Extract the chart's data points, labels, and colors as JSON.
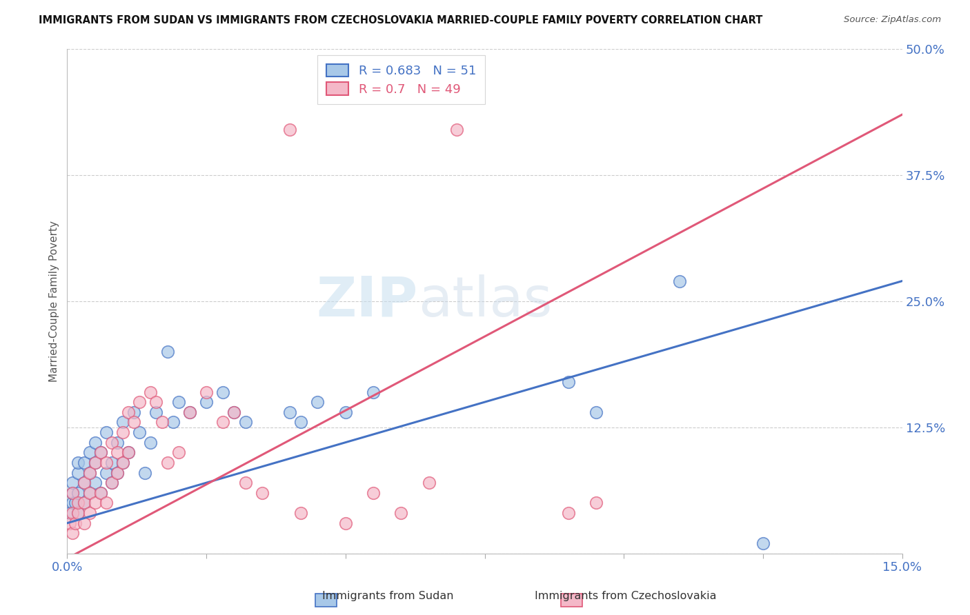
{
  "title": "IMMIGRANTS FROM SUDAN VS IMMIGRANTS FROM CZECHOSLOVAKIA MARRIED-COUPLE FAMILY POVERTY CORRELATION CHART",
  "source": "Source: ZipAtlas.com",
  "ylabel": "Married-Couple Family Poverty",
  "legend_label_blue": "Immigrants from Sudan",
  "legend_label_pink": "Immigrants from Czechoslovakia",
  "R_blue": 0.683,
  "N_blue": 51,
  "R_pink": 0.7,
  "N_pink": 49,
  "xlim": [
    0.0,
    0.15
  ],
  "ylim": [
    0.0,
    0.5
  ],
  "yticks": [
    0.0,
    0.125,
    0.25,
    0.375,
    0.5
  ],
  "ytick_labels": [
    "",
    "12.5%",
    "25.0%",
    "37.5%",
    "50.0%"
  ],
  "xticks": [
    0.0,
    0.025,
    0.05,
    0.075,
    0.1,
    0.125,
    0.15
  ],
  "xtick_labels": [
    "0.0%",
    "",
    "",
    "",
    "",
    "",
    "15.0%"
  ],
  "color_blue": "#a8c8e8",
  "color_pink": "#f4b8c8",
  "color_blue_line": "#4472c4",
  "color_pink_line": "#e05878",
  "color_blue_text": "#4472c4",
  "color_pink_text": "#e05878",
  "watermark": "ZIPatlas",
  "background_color": "#ffffff",
  "grid_color": "#cccccc",
  "sudan_x": [
    0.0005,
    0.001,
    0.001,
    0.001,
    0.0015,
    0.002,
    0.002,
    0.002,
    0.002,
    0.003,
    0.003,
    0.003,
    0.004,
    0.004,
    0.004,
    0.005,
    0.005,
    0.005,
    0.006,
    0.006,
    0.007,
    0.007,
    0.008,
    0.008,
    0.009,
    0.009,
    0.01,
    0.01,
    0.011,
    0.012,
    0.013,
    0.014,
    0.015,
    0.016,
    0.018,
    0.019,
    0.02,
    0.022,
    0.025,
    0.028,
    0.03,
    0.032,
    0.04,
    0.042,
    0.045,
    0.05,
    0.055,
    0.09,
    0.095,
    0.11,
    0.125
  ],
  "sudan_y": [
    0.04,
    0.05,
    0.06,
    0.07,
    0.05,
    0.04,
    0.06,
    0.08,
    0.09,
    0.05,
    0.07,
    0.09,
    0.06,
    0.08,
    0.1,
    0.07,
    0.09,
    0.11,
    0.06,
    0.1,
    0.08,
    0.12,
    0.07,
    0.09,
    0.08,
    0.11,
    0.09,
    0.13,
    0.1,
    0.14,
    0.12,
    0.08,
    0.11,
    0.14,
    0.2,
    0.13,
    0.15,
    0.14,
    0.15,
    0.16,
    0.14,
    0.13,
    0.14,
    0.13,
    0.15,
    0.14,
    0.16,
    0.17,
    0.14,
    0.27,
    0.01
  ],
  "czech_x": [
    0.0005,
    0.001,
    0.001,
    0.001,
    0.0015,
    0.002,
    0.002,
    0.003,
    0.003,
    0.003,
    0.004,
    0.004,
    0.004,
    0.005,
    0.005,
    0.006,
    0.006,
    0.007,
    0.007,
    0.008,
    0.008,
    0.009,
    0.009,
    0.01,
    0.01,
    0.011,
    0.011,
    0.012,
    0.013,
    0.015,
    0.016,
    0.017,
    0.018,
    0.02,
    0.022,
    0.025,
    0.028,
    0.03,
    0.032,
    0.035,
    0.04,
    0.042,
    0.05,
    0.055,
    0.06,
    0.065,
    0.07,
    0.09,
    0.095
  ],
  "czech_y": [
    0.03,
    0.02,
    0.04,
    0.06,
    0.03,
    0.04,
    0.05,
    0.03,
    0.05,
    0.07,
    0.04,
    0.06,
    0.08,
    0.05,
    0.09,
    0.06,
    0.1,
    0.05,
    0.09,
    0.07,
    0.11,
    0.08,
    0.1,
    0.09,
    0.12,
    0.1,
    0.14,
    0.13,
    0.15,
    0.16,
    0.15,
    0.13,
    0.09,
    0.1,
    0.14,
    0.16,
    0.13,
    0.14,
    0.07,
    0.06,
    0.42,
    0.04,
    0.03,
    0.06,
    0.04,
    0.07,
    0.42,
    0.04,
    0.05
  ],
  "blue_line_x0": 0.0,
  "blue_line_y0": 0.03,
  "blue_line_x1": 0.15,
  "blue_line_y1": 0.27,
  "pink_line_x0": 0.0,
  "pink_line_y0": -0.005,
  "pink_line_x1": 0.15,
  "pink_line_y1": 0.435
}
